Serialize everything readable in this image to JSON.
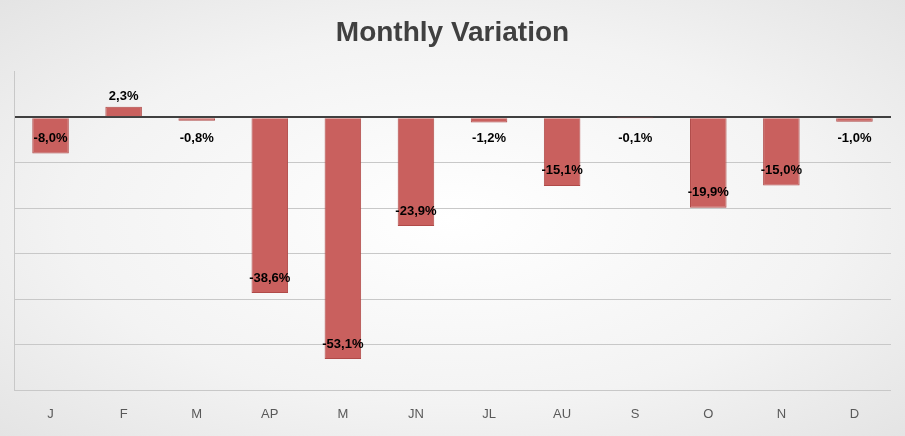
{
  "chart_data": {
    "type": "bar",
    "title": "Monthly Variation",
    "categories": [
      "J",
      "F",
      "M",
      "AP",
      "M",
      "JN",
      "JL",
      "AU",
      "S",
      "O",
      "N",
      "D"
    ],
    "values": [
      -8.0,
      2.3,
      -0.8,
      -38.6,
      -53.1,
      -23.9,
      -1.2,
      -15.1,
      -0.1,
      -19.9,
      -15.0,
      -1.0
    ],
    "value_labels": [
      "-8,0%",
      "2,3%",
      "-0,8%",
      "-38,6%",
      "-53,1%",
      "-23,9%",
      "-1,2%",
      "-15,1%",
      "-0,1%",
      "-19,9%",
      "-15,0%",
      "-1,0%"
    ],
    "color": "#c9605e",
    "ylim": [
      -60,
      10
    ],
    "yticks": [
      -60,
      -50,
      -40,
      -30,
      -20,
      -10,
      0
    ],
    "grid": true,
    "data_labels": true,
    "tick_labels": "x"
  }
}
